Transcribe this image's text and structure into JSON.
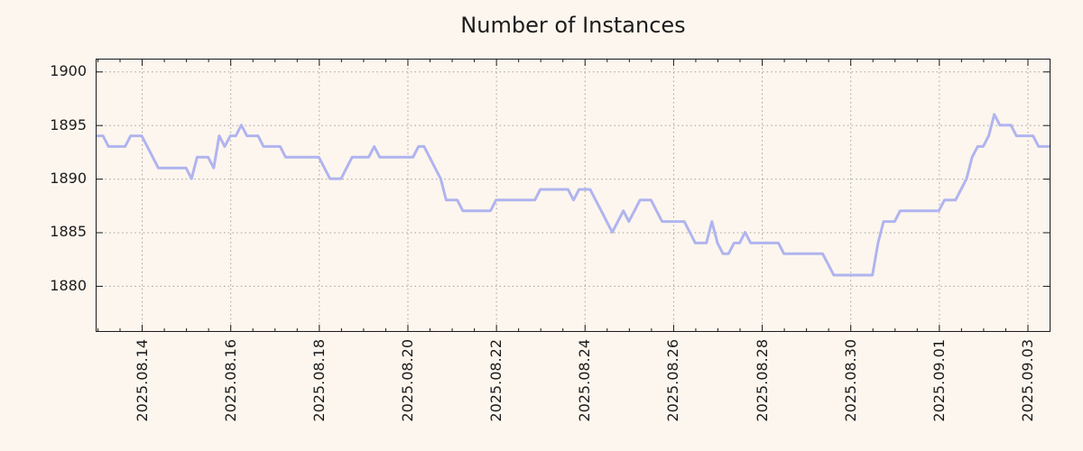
{
  "title": "Number of Instances",
  "colors": {
    "background": "#fdf6ee",
    "line": "#b0b4ef",
    "grid": "#9e9e9e",
    "axis": "#1a1a1a",
    "text": "#1c1c1c"
  },
  "chart_data": {
    "type": "line",
    "title": "Number of Instances",
    "legend": "none",
    "grid": "dotted",
    "x_start_label": "2025.08.13",
    "sample_interval_hours": 3,
    "xlim_days": [
      -0.04,
      21.52
    ],
    "ylim": [
      1875.7,
      1901.2
    ],
    "y_ticks": [
      1880,
      1885,
      1890,
      1895,
      1900
    ],
    "x_ticks": [
      {
        "label": "2025.08.14",
        "day": 1
      },
      {
        "label": "2025.08.16",
        "day": 3
      },
      {
        "label": "2025.08.18",
        "day": 5
      },
      {
        "label": "2025.08.20",
        "day": 7
      },
      {
        "label": "2025.08.22",
        "day": 9
      },
      {
        "label": "2025.08.24",
        "day": 11
      },
      {
        "label": "2025.08.26",
        "day": 13
      },
      {
        "label": "2025.08.28",
        "day": 15
      },
      {
        "label": "2025.08.30",
        "day": 17
      },
      {
        "label": "2025.09.01",
        "day": 19
      },
      {
        "label": "2025.09.03",
        "day": 21
      }
    ],
    "minor_tick_interval_days": 0.5,
    "values": [
      1894,
      1894,
      1893,
      1893,
      1893,
      1893,
      1894,
      1894,
      1894,
      1893,
      1892,
      1891,
      1891,
      1891,
      1891,
      1891,
      1891,
      1890,
      1892,
      1892,
      1892,
      1891,
      1894,
      1893,
      1894,
      1894,
      1895,
      1894,
      1894,
      1894,
      1893,
      1893,
      1893,
      1893,
      1892,
      1892,
      1892,
      1892,
      1892,
      1892,
      1892,
      1891,
      1890,
      1890,
      1890,
      1891,
      1892,
      1892,
      1892,
      1892,
      1893,
      1892,
      1892,
      1892,
      1892,
      1892,
      1892,
      1892,
      1893,
      1893,
      1892,
      1891,
      1890,
      1888,
      1888,
      1888,
      1887,
      1887,
      1887,
      1887,
      1887,
      1887,
      1888,
      1888,
      1888,
      1888,
      1888,
      1888,
      1888,
      1888,
      1889,
      1889,
      1889,
      1889,
      1889,
      1889,
      1888,
      1889,
      1889,
      1889,
      1888,
      1887,
      1886,
      1885,
      1886,
      1887,
      1886,
      1887,
      1888,
      1888,
      1888,
      1887,
      1886,
      1886,
      1886,
      1886,
      1886,
      1885,
      1884,
      1884,
      1884,
      1886,
      1884,
      1883,
      1883,
      1884,
      1884,
      1885,
      1884,
      1884,
      1884,
      1884,
      1884,
      1884,
      1883,
      1883,
      1883,
      1883,
      1883,
      1883,
      1883,
      1883,
      1882,
      1881,
      1881,
      1881,
      1881,
      1881,
      1881,
      1881,
      1881,
      1884,
      1886,
      1886,
      1886,
      1887,
      1887,
      1887,
      1887,
      1887,
      1887,
      1887,
      1887,
      1888,
      1888,
      1888,
      1889,
      1890,
      1892,
      1893,
      1893,
      1894,
      1896,
      1895,
      1895,
      1895,
      1894,
      1894,
      1894,
      1894,
      1893,
      1893,
      1893
    ]
  }
}
